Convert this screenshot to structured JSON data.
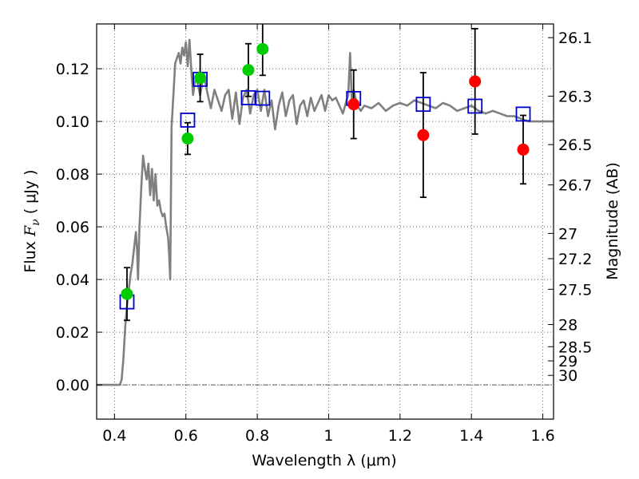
{
  "chart_data": {
    "type": "scatter",
    "xlabel": "Wavelength  λ (μm)",
    "ylabel_parts": [
      "Flux  ",
      "F",
      "ν",
      "  (  μJy  )"
    ],
    "y2label": "Magnitude (AB)",
    "xlim": [
      0.35,
      1.63
    ],
    "ylim": [
      -0.013,
      0.137
    ],
    "grid": true,
    "x_ticks": [
      0.4,
      0.6,
      0.8,
      1.0,
      1.2,
      1.4,
      1.6
    ],
    "x_tick_labels": [
      "0.4",
      "0.6",
      "0.8",
      "1",
      "1.2",
      "1.4",
      "1.6"
    ],
    "y_ticks": [
      0.0,
      0.02,
      0.04,
      0.06,
      0.08,
      0.1,
      0.12
    ],
    "y_tick_labels": [
      "0.00",
      "0.02",
      "0.04",
      "0.06",
      "0.08",
      "0.10",
      "0.12"
    ],
    "y2_ticks": [
      {
        "label": "26.1",
        "flux": 0.1318
      },
      {
        "label": "26.3",
        "flux": 0.1096
      },
      {
        "label": "26.5",
        "flux": 0.0912
      },
      {
        "label": "26.7",
        "flux": 0.0759
      },
      {
        "label": "27",
        "flux": 0.0575
      },
      {
        "label": "27.2",
        "flux": 0.0479
      },
      {
        "label": "27.5",
        "flux": 0.0363
      },
      {
        "label": "28",
        "flux": 0.0229
      },
      {
        "label": "28.5",
        "flux": 0.0145
      },
      {
        "label": "29",
        "flux": 0.0091
      },
      {
        "label": "30",
        "flux": 0.0036
      }
    ],
    "sed_model": {
      "name": "model-sed",
      "color": "#808080",
      "x": [
        0.35,
        0.41,
        0.415,
        0.42,
        0.425,
        0.43,
        0.435,
        0.44,
        0.445,
        0.45,
        0.455,
        0.46,
        0.463,
        0.466,
        0.47,
        0.475,
        0.48,
        0.485,
        0.49,
        0.495,
        0.5,
        0.505,
        0.51,
        0.515,
        0.52,
        0.525,
        0.53,
        0.535,
        0.54,
        0.545,
        0.55,
        0.553,
        0.556,
        0.56,
        0.565,
        0.57,
        0.575,
        0.58,
        0.585,
        0.59,
        0.595,
        0.6,
        0.605,
        0.61,
        0.615,
        0.62,
        0.625,
        0.63,
        0.635,
        0.64,
        0.65,
        0.66,
        0.67,
        0.68,
        0.69,
        0.7,
        0.71,
        0.72,
        0.73,
        0.74,
        0.75,
        0.76,
        0.77,
        0.78,
        0.79,
        0.8,
        0.81,
        0.82,
        0.83,
        0.84,
        0.85,
        0.86,
        0.87,
        0.88,
        0.89,
        0.9,
        0.91,
        0.92,
        0.93,
        0.94,
        0.95,
        0.96,
        0.97,
        0.98,
        0.99,
        1.0,
        1.01,
        1.02,
        1.03,
        1.04,
        1.05,
        1.055,
        1.06,
        1.065,
        1.07,
        1.08,
        1.09,
        1.1,
        1.12,
        1.14,
        1.16,
        1.18,
        1.2,
        1.22,
        1.24,
        1.26,
        1.28,
        1.3,
        1.32,
        1.34,
        1.36,
        1.38,
        1.4,
        1.42,
        1.44,
        1.46,
        1.48,
        1.5,
        1.52,
        1.54,
        1.56,
        1.58,
        1.6,
        1.63
      ],
      "y": [
        0.0,
        0.0,
        0.0,
        0.002,
        0.01,
        0.022,
        0.03,
        0.036,
        0.042,
        0.046,
        0.052,
        0.058,
        0.052,
        0.04,
        0.06,
        0.075,
        0.087,
        0.082,
        0.078,
        0.084,
        0.072,
        0.082,
        0.07,
        0.08,
        0.068,
        0.07,
        0.066,
        0.064,
        0.065,
        0.06,
        0.056,
        0.05,
        0.04,
        0.098,
        0.11,
        0.122,
        0.124,
        0.126,
        0.122,
        0.128,
        0.125,
        0.13,
        0.121,
        0.131,
        0.12,
        0.11,
        0.115,
        0.116,
        0.113,
        0.11,
        0.118,
        0.111,
        0.105,
        0.112,
        0.108,
        0.104,
        0.11,
        0.112,
        0.101,
        0.111,
        0.099,
        0.109,
        0.112,
        0.103,
        0.11,
        0.112,
        0.104,
        0.112,
        0.102,
        0.108,
        0.097,
        0.106,
        0.111,
        0.102,
        0.108,
        0.11,
        0.099,
        0.106,
        0.108,
        0.102,
        0.109,
        0.104,
        0.107,
        0.11,
        0.104,
        0.11,
        0.108,
        0.109,
        0.106,
        0.103,
        0.108,
        0.11,
        0.126,
        0.108,
        0.112,
        0.106,
        0.104,
        0.106,
        0.105,
        0.107,
        0.104,
        0.106,
        0.107,
        0.106,
        0.108,
        0.107,
        0.106,
        0.105,
        0.107,
        0.106,
        0.104,
        0.105,
        0.106,
        0.104,
        0.103,
        0.104,
        0.103,
        0.102,
        0.102,
        0.101,
        0.1,
        0.1,
        0.1,
        0.1
      ]
    },
    "series": [
      {
        "name": "model-photometry",
        "marker": "square-open",
        "color": "#0000cc",
        "x": [
          0.435,
          0.605,
          0.64,
          0.775,
          0.815,
          1.07,
          1.265,
          1.41,
          1.545
        ],
        "values": [
          0.0315,
          0.1005,
          0.116,
          0.109,
          0.1088,
          0.1087,
          0.1065,
          0.1058,
          0.1028
        ]
      },
      {
        "name": "observed-photometry-green",
        "marker": "circle-filled",
        "color": "#00cc00",
        "x": [
          0.435,
          0.605,
          0.64,
          0.775,
          0.815
        ],
        "values": [
          0.0345,
          0.0935,
          0.1165,
          0.1195,
          0.1275
        ],
        "yerr_low": [
          0.0245,
          0.0875,
          0.1075,
          0.1095,
          0.1175
        ],
        "yerr_high": [
          0.0445,
          0.0995,
          0.1255,
          0.1295,
          0.1375
        ]
      },
      {
        "name": "observed-photometry-red",
        "marker": "circle-filled",
        "color": "#ff0000",
        "x": [
          1.07,
          1.265,
          1.41,
          1.545
        ],
        "values": [
          0.1065,
          0.0948,
          0.1152,
          0.0893
        ],
        "yerr_low": [
          0.0935,
          0.0712,
          0.0952,
          0.0763
        ],
        "yerr_high": [
          0.1195,
          0.1185,
          0.1352,
          0.1023
        ]
      }
    ]
  }
}
